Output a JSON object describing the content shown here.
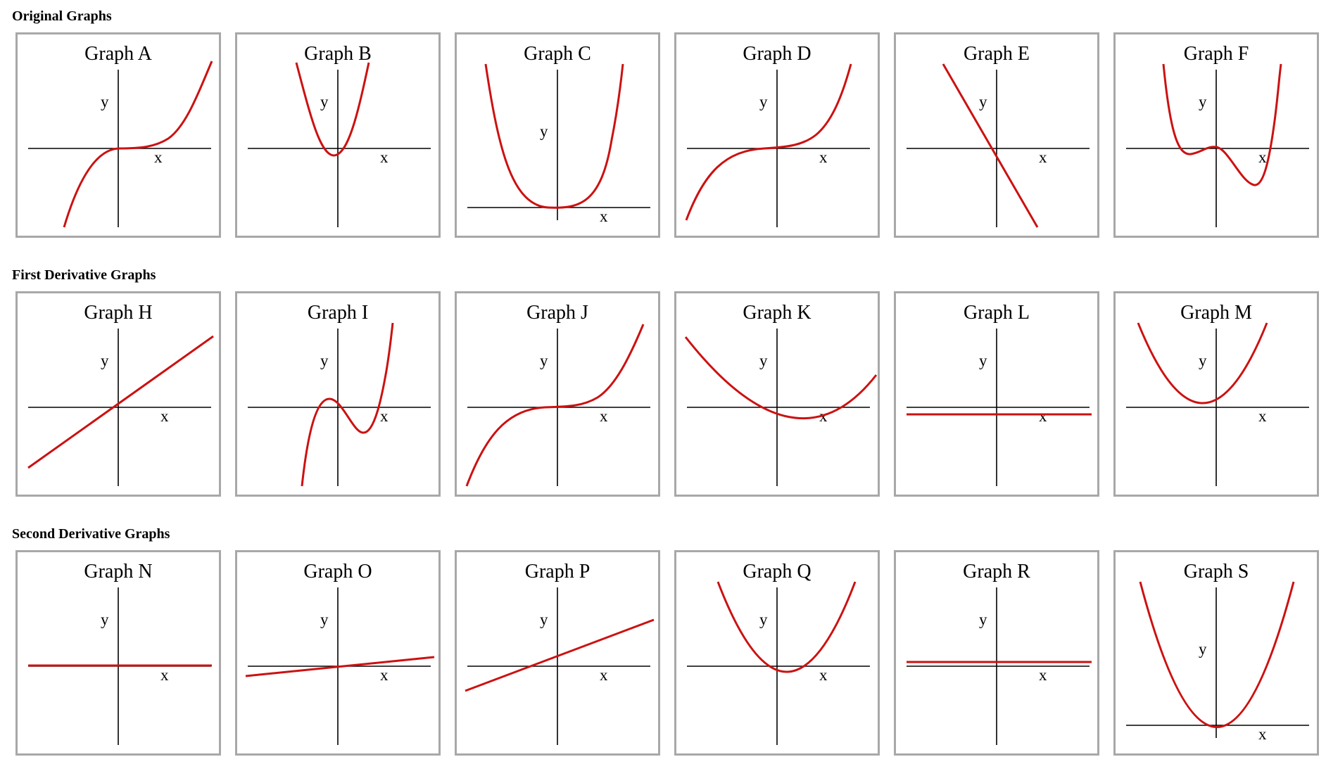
{
  "colors": {
    "curve": "#cc1111",
    "axis": "#000000",
    "border": "#a8a8a8"
  },
  "rows": [
    {
      "title": "Original Graphs",
      "graphs": [
        {
          "id": "A",
          "title": "Graph A",
          "x_label": "x",
          "y_label": "y",
          "curve": "cubic-flat"
        },
        {
          "id": "B",
          "title": "Graph B",
          "x_label": "x",
          "y_label": "y",
          "curve": "narrow-parabola"
        },
        {
          "id": "C",
          "title": "Graph C",
          "x_label": "x",
          "y_label": "y",
          "curve": "quartic-flat-bottom"
        },
        {
          "id": "D",
          "title": "Graph D",
          "x_label": "x",
          "y_label": "y",
          "curve": "cubic-flat"
        },
        {
          "id": "E",
          "title": "Graph E",
          "x_label": "x",
          "y_label": "y",
          "curve": "decreasing-line"
        },
        {
          "id": "F",
          "title": "Graph F",
          "x_label": "x",
          "y_label": "y",
          "curve": "w-quartic"
        }
      ]
    },
    {
      "title": "First Derivative Graphs",
      "graphs": [
        {
          "id": "H",
          "title": "Graph H",
          "x_label": "x",
          "y_label": "y",
          "curve": "increasing-line"
        },
        {
          "id": "I",
          "title": "Graph I",
          "x_label": "x",
          "y_label": "y",
          "curve": "cubic-wave"
        },
        {
          "id": "J",
          "title": "Graph J",
          "x_label": "x",
          "y_label": "y",
          "curve": "cubic-flat"
        },
        {
          "id": "K",
          "title": "Graph K",
          "x_label": "x",
          "y_label": "y",
          "curve": "wide-parabola"
        },
        {
          "id": "L",
          "title": "Graph L",
          "x_label": "x",
          "y_label": "y",
          "curve": "constant-below"
        },
        {
          "id": "M",
          "title": "Graph M",
          "x_label": "x",
          "y_label": "y",
          "curve": "parabola"
        }
      ]
    },
    {
      "title": "Second Derivative Graphs",
      "graphs": [
        {
          "id": "N",
          "title": "Graph N",
          "x_label": "x",
          "y_label": "y",
          "curve": "zero-line"
        },
        {
          "id": "O",
          "title": "Graph O",
          "x_label": "x",
          "y_label": "y",
          "curve": "shallow-line"
        },
        {
          "id": "P",
          "title": "Graph P",
          "x_label": "x",
          "y_label": "y",
          "curve": "increasing-line"
        },
        {
          "id": "Q",
          "title": "Graph Q",
          "x_label": "x",
          "y_label": "y",
          "curve": "parabola-dip"
        },
        {
          "id": "R",
          "title": "Graph R",
          "x_label": "x",
          "y_label": "y",
          "curve": "constant-above"
        },
        {
          "id": "S",
          "title": "Graph S",
          "x_label": "x",
          "y_label": "y",
          "curve": "parabola-low"
        }
      ]
    }
  ]
}
